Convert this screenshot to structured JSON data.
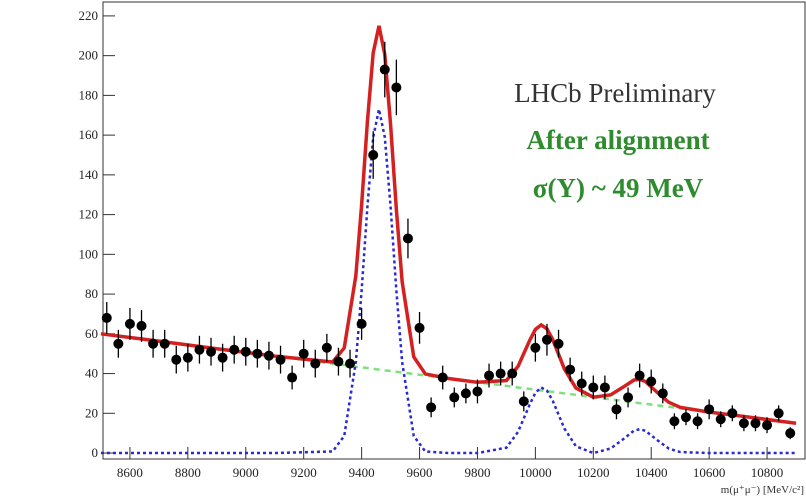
{
  "chart_data": {
    "type": "scatter",
    "xlabel": "m(μ⁺μ⁻) [MeV/c²]",
    "annotations": [
      "LHCb Preliminary",
      "After alignment",
      "σ(Y) ~ 49 MeV"
    ],
    "xlim": [
      8507,
      10931
    ],
    "ylim": [
      -3,
      227
    ],
    "xticks": [
      8600,
      8800,
      9000,
      9200,
      9400,
      9600,
      9800,
      10000,
      10200,
      10400,
      10600,
      10800
    ],
    "yticks": [
      0,
      20,
      40,
      60,
      80,
      100,
      120,
      140,
      160,
      180,
      200,
      220
    ],
    "x": [
      8520,
      8560,
      8600,
      8640,
      8680,
      8720,
      8760,
      8800,
      8840,
      8880,
      8920,
      8960,
      9000,
      9040,
      9080,
      9120,
      9160,
      9200,
      9240,
      9280,
      9320,
      9360,
      9400,
      9440,
      9480,
      9520,
      9560,
      9600,
      9640,
      9680,
      9720,
      9760,
      9800,
      9840,
      9880,
      9920,
      9960,
      10000,
      10040,
      10080,
      10120,
      10160,
      10200,
      10240,
      10280,
      10320,
      10360,
      10400,
      10440,
      10480,
      10520,
      10560,
      10600,
      10640,
      10680,
      10720,
      10760,
      10800,
      10840,
      10880
    ],
    "series": [
      {
        "color": "#000000",
        "values": [
          68,
          55,
          65,
          64,
          55,
          55,
          47,
          48,
          52,
          51,
          48,
          52,
          51,
          50,
          49,
          47,
          38,
          50,
          45,
          53,
          46,
          45,
          65,
          150,
          193,
          184,
          108,
          63,
          23,
          38,
          28,
          30,
          31,
          39,
          40,
          40,
          26,
          53,
          57,
          55,
          42,
          35,
          33,
          33,
          22,
          28,
          39,
          36,
          30,
          16,
          18,
          16,
          22,
          17,
          20,
          15,
          15,
          14,
          20,
          10
        ],
        "errors": [
          8,
          7,
          8,
          8,
          7,
          7,
          7,
          7,
          7,
          7,
          7,
          7,
          7,
          7,
          7,
          7,
          6,
          7,
          7,
          7,
          7,
          7,
          8,
          12,
          14,
          14,
          10,
          8,
          5,
          6,
          5,
          5,
          6,
          6,
          6,
          6,
          5,
          7,
          8,
          7,
          6,
          6,
          6,
          6,
          5,
          5,
          6,
          6,
          5,
          4,
          4,
          4,
          5,
          4,
          4,
          4,
          4,
          4,
          4,
          3
        ]
      }
    ],
    "curve_x": [
      8500,
      8700,
      8900,
      9100,
      9300,
      9340,
      9380,
      9400,
      9420,
      9440,
      9460,
      9480,
      9500,
      9520,
      9540,
      9580,
      9620,
      9700,
      9800,
      9900,
      9940,
      9980,
      10000,
      10020,
      10040,
      10060,
      10100,
      10140,
      10200,
      10260,
      10300,
      10340,
      10360,
      10380,
      10420,
      10460,
      10500,
      10600,
      10700,
      10800,
      10900
    ],
    "curves": [
      {
        "color": "#7fe07f",
        "style": "dashed",
        "values": [
          60,
          56.3,
          52.5,
          48.8,
          45,
          44.3,
          43.5,
          43.1,
          42.8,
          42.4,
          42,
          41.6,
          41.3,
          40.9,
          40.5,
          39.8,
          39,
          37.5,
          35.6,
          33.8,
          33,
          32.3,
          31.9,
          31.5,
          31.1,
          30.8,
          30,
          29.3,
          28.1,
          27,
          26.3,
          25.5,
          25.1,
          24.8,
          24,
          23.3,
          22.5,
          20.6,
          18.8,
          16.9,
          15
        ]
      },
      {
        "color": "#2a2ad0",
        "style": "dotted",
        "values": [
          0,
          0,
          0,
          0,
          0.8,
          8.6,
          45.7,
          81.7,
          124,
          159,
          173,
          159,
          124,
          81.7,
          45.7,
          8.6,
          0.8,
          0,
          0,
          2.7,
          10.6,
          24.3,
          30.3,
          33,
          31.4,
          26.3,
          12.4,
          3.4,
          0,
          2.3,
          6.6,
          11.2,
          12,
          11.2,
          6.6,
          2.3,
          0.5,
          0,
          0,
          0,
          0
        ]
      },
      {
        "color": "#d42020",
        "style": "solid",
        "values": [
          60,
          56.3,
          52.5,
          48.8,
          45.8,
          52.9,
          89.2,
          124.8,
          166.8,
          201.4,
          215,
          200.6,
          165.3,
          122.6,
          86.2,
          48.4,
          39.8,
          37.5,
          35.6,
          36.5,
          43.6,
          56.6,
          62.2,
          64.5,
          62.5,
          57.1,
          42.4,
          32.7,
          28.1,
          29.3,
          32.9,
          36.7,
          37.1,
          36,
          30.6,
          25.6,
          23,
          20.6,
          18.8,
          16.9,
          15
        ]
      }
    ]
  }
}
